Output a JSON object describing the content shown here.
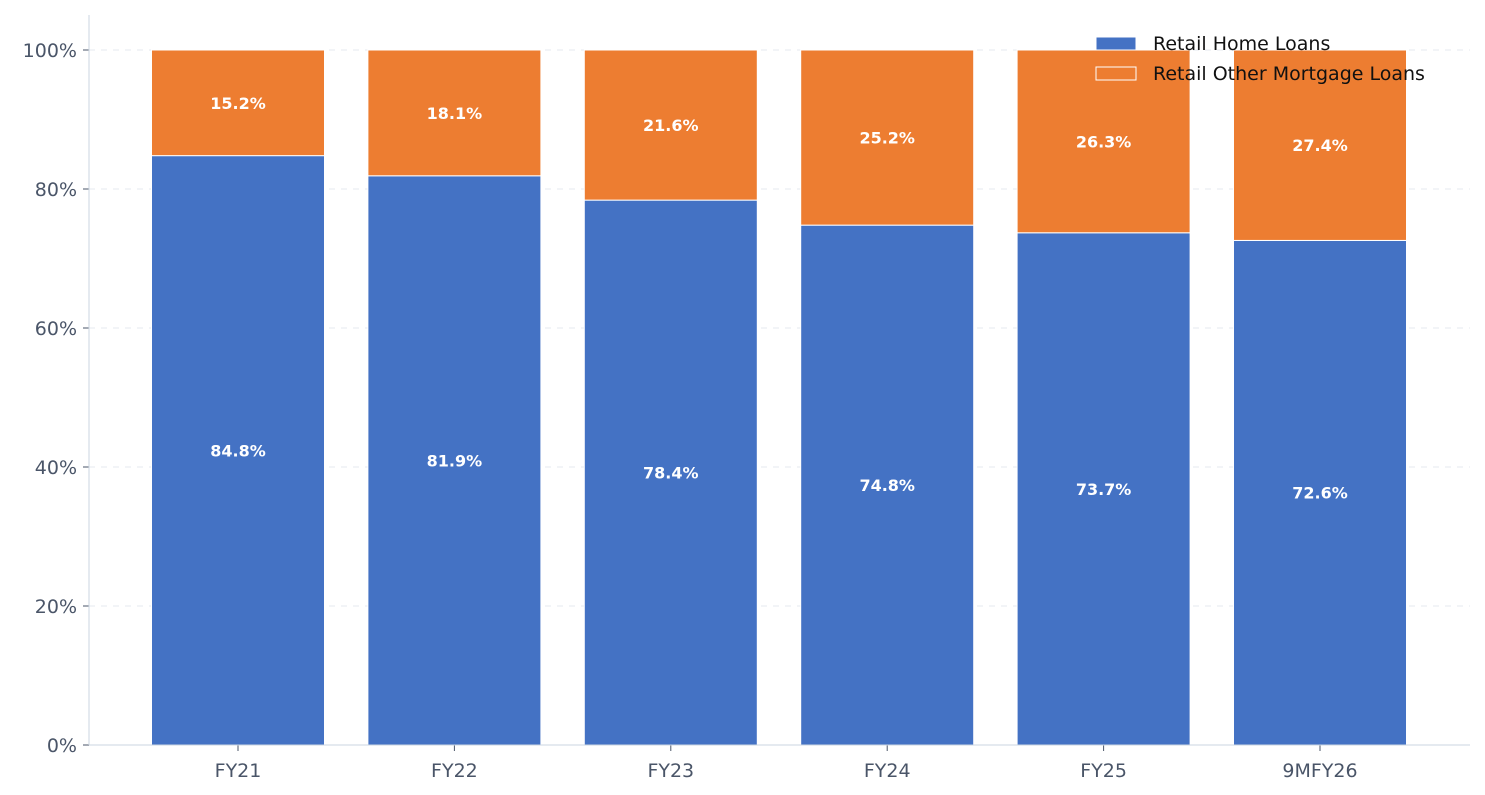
{
  "chart_data": {
    "type": "bar",
    "stacked": true,
    "categories": [
      "FY21",
      "FY22",
      "FY23",
      "FY24",
      "FY25",
      "9MFY26"
    ],
    "series": [
      {
        "name": "Retail Home Loans",
        "values": [
          84.8,
          81.9,
          78.4,
          74.8,
          73.7,
          72.6
        ],
        "labels": [
          "84.8%",
          "81.9%",
          "78.4%",
          "74.8%",
          "73.7%",
          "72.6%"
        ],
        "color": "#4472c4"
      },
      {
        "name": "Retail Other Mortgage Loans",
        "values": [
          15.2,
          18.1,
          21.6,
          25.2,
          26.3,
          27.4
        ],
        "labels": [
          "15.2%",
          "18.1%",
          "21.6%",
          "25.2%",
          "26.3%",
          "27.4%"
        ],
        "color": "#ed7d31"
      }
    ],
    "yticks": [
      "0%",
      "20%",
      "40%",
      "60%",
      "80%",
      "100%"
    ],
    "ylim": [
      0,
      100
    ],
    "grid": "y-dashed",
    "legend": "top-right",
    "title": "",
    "xlabel": "",
    "ylabel": ""
  }
}
